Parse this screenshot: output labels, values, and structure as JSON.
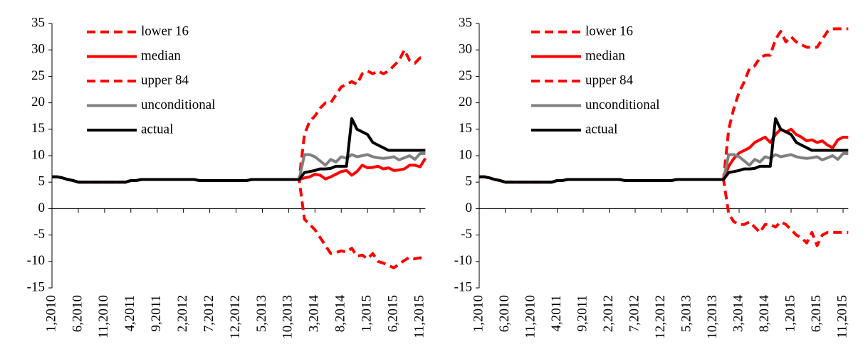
{
  "chart_data": [
    {
      "type": "line",
      "ylim": [
        -15,
        35
      ],
      "yticks": [
        -15,
        -10,
        -5,
        0,
        5,
        10,
        15,
        20,
        25,
        30,
        35
      ],
      "legend": "upper-left",
      "categories": [
        "1,2010",
        null,
        null,
        null,
        null,
        "6,2010",
        null,
        null,
        null,
        null,
        "11,2010",
        null,
        null,
        null,
        null,
        "4,2011",
        null,
        null,
        null,
        null,
        "9,2011",
        null,
        null,
        null,
        null,
        "2,2012",
        null,
        null,
        null,
        null,
        "7,2012",
        null,
        null,
        null,
        null,
        "12,2012",
        null,
        null,
        null,
        null,
        "5,2013",
        null,
        null,
        null,
        null,
        "10,2013",
        null,
        null,
        null,
        null,
        "3,2014",
        null,
        null,
        null,
        null,
        "8,2014",
        null,
        null,
        null,
        null,
        "1,2015",
        null,
        null,
        null,
        null,
        "6,2015",
        null,
        null,
        null,
        null,
        "11,2015",
        null
      ],
      "series": [
        {
          "name": "lower 16",
          "color": "#ff0000",
          "dashed": true,
          "values": [
            6,
            6,
            5.8,
            5.5,
            5.3,
            5,
            5,
            5,
            5,
            5,
            5,
            5,
            5,
            5,
            5,
            5.3,
            5.3,
            5.5,
            5.5,
            5.5,
            5.5,
            5.5,
            5.5,
            5.5,
            5.5,
            5.5,
            5.5,
            5.5,
            5.3,
            5.3,
            5.3,
            5.3,
            5.3,
            5.3,
            5.3,
            5.3,
            5.3,
            5.3,
            5.5,
            5.5,
            5.5,
            5.5,
            5.5,
            5.5,
            5.5,
            5.5,
            5.5,
            5.5,
            -2,
            -3,
            -4,
            -5.5,
            -7,
            -8.5,
            -8.3,
            -8,
            -8.2,
            -7.5,
            -9,
            -8.8,
            -9.5,
            -8.5,
            -10,
            -10.3,
            -10.8,
            -11.2,
            -10.5,
            -9.8,
            -9.2,
            -9.5,
            -9.3,
            -9.8
          ]
        },
        {
          "name": "median",
          "color": "#ff0000",
          "dashed": false,
          "values": [
            6,
            6,
            5.8,
            5.5,
            5.3,
            5,
            5,
            5,
            5,
            5,
            5,
            5,
            5,
            5,
            5,
            5.3,
            5.3,
            5.5,
            5.5,
            5.5,
            5.5,
            5.5,
            5.5,
            5.5,
            5.5,
            5.5,
            5.5,
            5.5,
            5.3,
            5.3,
            5.3,
            5.3,
            5.3,
            5.3,
            5.3,
            5.3,
            5.3,
            5.3,
            5.5,
            5.5,
            5.5,
            5.5,
            5.5,
            5.5,
            5.5,
            5.5,
            5.5,
            5.5,
            5.8,
            6,
            6.5,
            6.3,
            5.6,
            6,
            6.5,
            7,
            7.2,
            6.3,
            7,
            8.2,
            7.7,
            7.8,
            8,
            7.5,
            7.7,
            7.2,
            7.3,
            7.5,
            8.2,
            8.2,
            7.9,
            9.5
          ]
        },
        {
          "name": "upper 84",
          "color": "#ff0000",
          "dashed": true,
          "values": [
            6,
            6,
            5.8,
            5.5,
            5.3,
            5,
            5,
            5,
            5,
            5,
            5,
            5,
            5,
            5,
            5,
            5.3,
            5.3,
            5.5,
            5.5,
            5.5,
            5.5,
            5.5,
            5.5,
            5.5,
            5.5,
            5.5,
            5.5,
            5.5,
            5.3,
            5.3,
            5.3,
            5.3,
            5.3,
            5.3,
            5.3,
            5.3,
            5.3,
            5.3,
            5.5,
            5.5,
            5.5,
            5.5,
            5.5,
            5.5,
            5.5,
            5.5,
            5.5,
            5.5,
            14,
            16.5,
            17.5,
            19,
            20,
            20,
            21.5,
            23,
            23.5,
            24,
            23.5,
            25.5,
            26,
            25.5,
            26,
            25.5,
            26,
            27,
            28,
            30,
            28,
            27.5,
            28.5,
            28.5
          ]
        },
        {
          "name": "unconditional",
          "color": "#808080",
          "dashed": false,
          "values": [
            6,
            6,
            5.8,
            5.5,
            5.3,
            5,
            5,
            5,
            5,
            5,
            5,
            5,
            5,
            5,
            5,
            5.3,
            5.3,
            5.5,
            5.5,
            5.5,
            5.5,
            5.5,
            5.5,
            5.5,
            5.5,
            5.5,
            5.5,
            5.5,
            5.3,
            5.3,
            5.3,
            5.3,
            5.3,
            5.3,
            5.3,
            5.3,
            5.3,
            5.3,
            5.5,
            5.5,
            5.5,
            5.5,
            5.5,
            5.5,
            5.5,
            5.5,
            5.5,
            5.5,
            10.2,
            10.2,
            9.8,
            9,
            8.2,
            9.3,
            8.8,
            9.8,
            9.5,
            10.2,
            9.8,
            10,
            10.2,
            9.8,
            9.6,
            9.5,
            9.6,
            9.8,
            9.2,
            9.6,
            10,
            9.3,
            10.4,
            10.4
          ]
        },
        {
          "name": "actual",
          "color": "#000000",
          "dashed": false,
          "values": [
            6,
            6,
            5.8,
            5.5,
            5.3,
            5,
            5,
            5,
            5,
            5,
            5,
            5,
            5,
            5,
            5,
            5.3,
            5.3,
            5.5,
            5.5,
            5.5,
            5.5,
            5.5,
            5.5,
            5.5,
            5.5,
            5.5,
            5.5,
            5.5,
            5.3,
            5.3,
            5.3,
            5.3,
            5.3,
            5.3,
            5.3,
            5.3,
            5.3,
            5.3,
            5.5,
            5.5,
            5.5,
            5.5,
            5.5,
            5.5,
            5.5,
            5.5,
            5.5,
            5.5,
            6.8,
            7,
            7.2,
            7.5,
            7.5,
            7.6,
            8,
            8,
            8,
            17,
            15,
            14.5,
            14,
            12.5,
            12,
            11.5,
            11,
            11,
            11,
            11,
            11,
            11,
            11,
            11
          ]
        }
      ]
    },
    {
      "type": "line",
      "ylim": [
        -15,
        35
      ],
      "yticks": [
        -15,
        -10,
        -5,
        0,
        5,
        10,
        15,
        20,
        25,
        30,
        35
      ],
      "legend": "upper-left",
      "categories": [
        "1,2010",
        null,
        null,
        null,
        null,
        "6,2010",
        null,
        null,
        null,
        null,
        "11,2010",
        null,
        null,
        null,
        null,
        "4,2011",
        null,
        null,
        null,
        null,
        "9,2011",
        null,
        null,
        null,
        null,
        "2,2012",
        null,
        null,
        null,
        null,
        "7,2012",
        null,
        null,
        null,
        null,
        "12,2012",
        null,
        null,
        null,
        null,
        "5,2013",
        null,
        null,
        null,
        null,
        "10,2013",
        null,
        null,
        null,
        null,
        "3,2014",
        null,
        null,
        null,
        null,
        "8,2014",
        null,
        null,
        null,
        null,
        "1,2015",
        null,
        null,
        null,
        null,
        "6,2015",
        null,
        null,
        null,
        null,
        "11,2015",
        null
      ],
      "series": [
        {
          "name": "lower 16",
          "color": "#ff0000",
          "dashed": true,
          "values": [
            6,
            6,
            5.8,
            5.5,
            5.3,
            5,
            5,
            5,
            5,
            5,
            5,
            5,
            5,
            5,
            5,
            5.3,
            5.3,
            5.5,
            5.5,
            5.5,
            5.5,
            5.5,
            5.5,
            5.5,
            5.5,
            5.5,
            5.5,
            5.5,
            5.3,
            5.3,
            5.3,
            5.3,
            5.3,
            5.3,
            5.3,
            5.3,
            5.3,
            5.3,
            5.5,
            5.5,
            5.5,
            5.5,
            5.5,
            5.5,
            5.5,
            5.5,
            5.5,
            5.5,
            -1,
            -2.5,
            -3,
            -3,
            -2.5,
            -3.5,
            -4.5,
            -3,
            -3,
            -3.5,
            -2.5,
            -3,
            -4,
            -5,
            -5.5,
            -6.5,
            -4.5,
            -7,
            -5,
            -4.5,
            -4.5,
            -4.5,
            -4.5,
            -4.5
          ]
        },
        {
          "name": "median",
          "color": "#ff0000",
          "dashed": false,
          "values": [
            6,
            6,
            5.8,
            5.5,
            5.3,
            5,
            5,
            5,
            5,
            5,
            5,
            5,
            5,
            5,
            5,
            5.3,
            5.3,
            5.5,
            5.5,
            5.5,
            5.5,
            5.5,
            5.5,
            5.5,
            5.5,
            5.5,
            5.5,
            5.5,
            5.3,
            5.3,
            5.3,
            5.3,
            5.3,
            5.3,
            5.3,
            5.3,
            5.3,
            5.3,
            5.5,
            5.5,
            5.5,
            5.5,
            5.5,
            5.5,
            5.5,
            5.5,
            5.5,
            5.5,
            8,
            9.5,
            10.5,
            11,
            11.5,
            12.5,
            13,
            13.5,
            12.5,
            14,
            15,
            14.5,
            15,
            14,
            13.5,
            12.8,
            13,
            12.5,
            12.8,
            12,
            11.5,
            13,
            13.5,
            13.5
          ]
        },
        {
          "name": "upper 84",
          "color": "#ff0000",
          "dashed": true,
          "values": [
            6,
            6,
            5.8,
            5.5,
            5.3,
            5,
            5,
            5,
            5,
            5,
            5,
            5,
            5,
            5,
            5,
            5.3,
            5.3,
            5.5,
            5.5,
            5.5,
            5.5,
            5.5,
            5.5,
            5.5,
            5.5,
            5.5,
            5.5,
            5.5,
            5.3,
            5.3,
            5.3,
            5.3,
            5.3,
            5.3,
            5.3,
            5.3,
            5.3,
            5.3,
            5.5,
            5.5,
            5.5,
            5.5,
            5.5,
            5.5,
            5.5,
            5.5,
            5.5,
            5.5,
            15,
            19,
            22,
            24,
            26.5,
            27,
            28.5,
            29,
            29,
            32,
            33.5,
            31.5,
            32.5,
            31.5,
            31,
            30.5,
            30.5,
            30.5,
            32,
            33.5,
            34,
            34,
            34,
            34
          ]
        },
        {
          "name": "unconditional",
          "color": "#808080",
          "dashed": false,
          "values": [
            6,
            6,
            5.8,
            5.5,
            5.3,
            5,
            5,
            5,
            5,
            5,
            5,
            5,
            5,
            5,
            5,
            5.3,
            5.3,
            5.5,
            5.5,
            5.5,
            5.5,
            5.5,
            5.5,
            5.5,
            5.5,
            5.5,
            5.5,
            5.5,
            5.3,
            5.3,
            5.3,
            5.3,
            5.3,
            5.3,
            5.3,
            5.3,
            5.3,
            5.3,
            5.5,
            5.5,
            5.5,
            5.5,
            5.5,
            5.5,
            5.5,
            5.5,
            5.5,
            5.5,
            10.2,
            10.2,
            9.8,
            9,
            8.2,
            9.3,
            8.8,
            9.8,
            9.5,
            10.2,
            9.8,
            10,
            10.2,
            9.8,
            9.6,
            9.5,
            9.6,
            9.8,
            9.2,
            9.6,
            10,
            9.3,
            10.4,
            10.4
          ]
        },
        {
          "name": "actual",
          "color": "#000000",
          "dashed": false,
          "values": [
            6,
            6,
            5.8,
            5.5,
            5.3,
            5,
            5,
            5,
            5,
            5,
            5,
            5,
            5,
            5,
            5,
            5.3,
            5.3,
            5.5,
            5.5,
            5.5,
            5.5,
            5.5,
            5.5,
            5.5,
            5.5,
            5.5,
            5.5,
            5.5,
            5.3,
            5.3,
            5.3,
            5.3,
            5.3,
            5.3,
            5.3,
            5.3,
            5.3,
            5.3,
            5.5,
            5.5,
            5.5,
            5.5,
            5.5,
            5.5,
            5.5,
            5.5,
            5.5,
            5.5,
            6.8,
            7,
            7.2,
            7.5,
            7.5,
            7.6,
            8,
            8,
            8,
            17,
            15,
            14.5,
            14,
            12.5,
            12,
            11.5,
            11,
            11,
            11,
            11,
            11,
            11,
            11,
            11
          ]
        }
      ]
    }
  ]
}
